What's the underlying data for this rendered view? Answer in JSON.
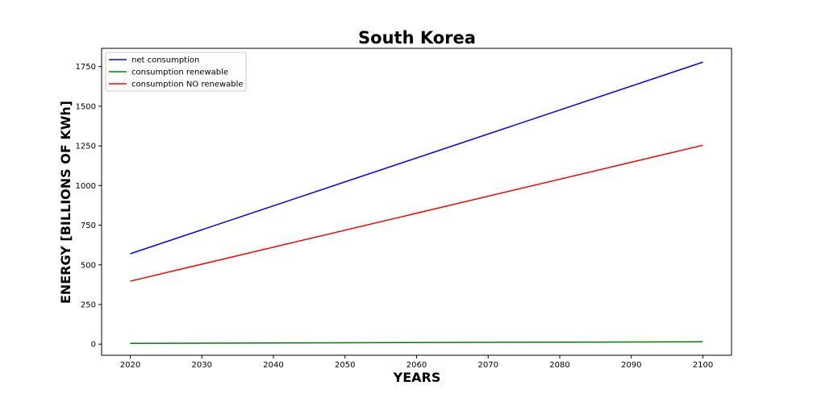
{
  "chart_data": {
    "type": "line",
    "title": "South Korea",
    "xlabel": "YEARS",
    "ylabel": "ENERGY [BILLIONS OF KWh]",
    "x": [
      2020,
      2100
    ],
    "xlim": [
      2016,
      2104
    ],
    "ylim": [
      -70,
      1865
    ],
    "xticks": [
      2020,
      2030,
      2040,
      2050,
      2060,
      2070,
      2080,
      2090,
      2100
    ],
    "yticks": [
      0,
      250,
      500,
      750,
      1000,
      1250,
      1500,
      1750
    ],
    "grid": false,
    "legend_position": "top-left",
    "series": [
      {
        "name": "net consumption",
        "color": "#0000ff",
        "values": [
          570,
          1778
        ]
      },
      {
        "name": "consumption renewable",
        "color": "#008000",
        "values": [
          5,
          15
        ]
      },
      {
        "name": "consumption NO renewable",
        "color": "#ff0000",
        "values": [
          397,
          1254
        ]
      }
    ]
  }
}
